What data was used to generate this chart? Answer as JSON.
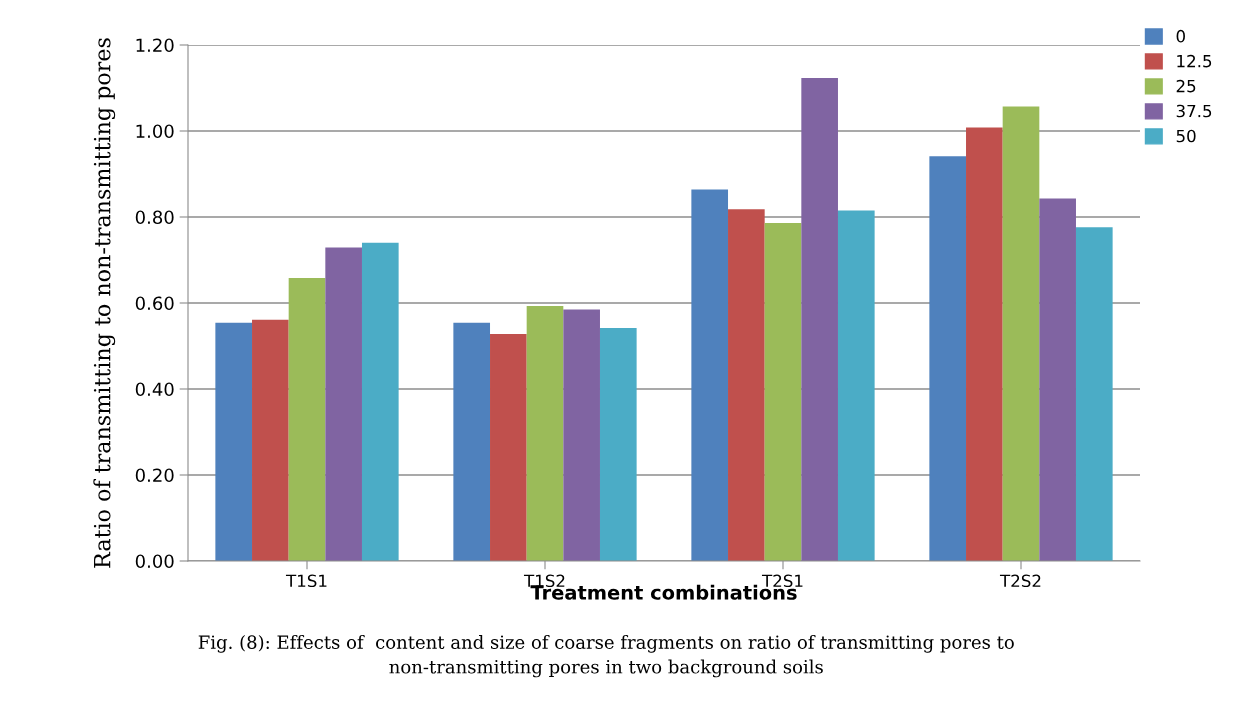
{
  "chart_data": {
    "type": "bar",
    "xlabel": "Treatment combinations",
    "ylabel": "Ratio of transmitting to non-transmitting pores",
    "categories": [
      "T1S1",
      "T1S2",
      "T2S1",
      "T2S2"
    ],
    "series": [
      {
        "name": "0",
        "color": "#4f81bd",
        "values": [
          0.554,
          0.554,
          0.864,
          0.941
        ]
      },
      {
        "name": "12.5",
        "color": "#c0504d",
        "values": [
          0.561,
          0.528,
          0.818,
          1.008
        ]
      },
      {
        "name": "25",
        "color": "#9bbb59",
        "values": [
          0.658,
          0.593,
          0.786,
          1.057
        ]
      },
      {
        "name": "37.5",
        "color": "#8064a2",
        "values": [
          0.729,
          0.585,
          1.123,
          0.843
        ]
      },
      {
        "name": "50",
        "color": "#4bacc6",
        "values": [
          0.74,
          0.542,
          0.815,
          0.776
        ]
      }
    ],
    "ylim": [
      0,
      1.2
    ],
    "yticks": [
      {
        "value": 0,
        "label": "0.00"
      },
      {
        "value": 0.2,
        "label": "0.20"
      },
      {
        "value": 0.4,
        "label": "0.40"
      },
      {
        "value": 0.6,
        "label": "0.60"
      },
      {
        "value": 0.8,
        "label": "0.80"
      },
      {
        "value": 1.0,
        "label": "1.00"
      },
      {
        "value": 1.2,
        "label": "1.20"
      }
    ],
    "grid": "y",
    "legend": "top right",
    "annotations": [
      "Fig. (8): Effects of  content and size of coarse fragments on ratio of transmitting pores to\nnon-transmitting pores in two background soils"
    ]
  }
}
